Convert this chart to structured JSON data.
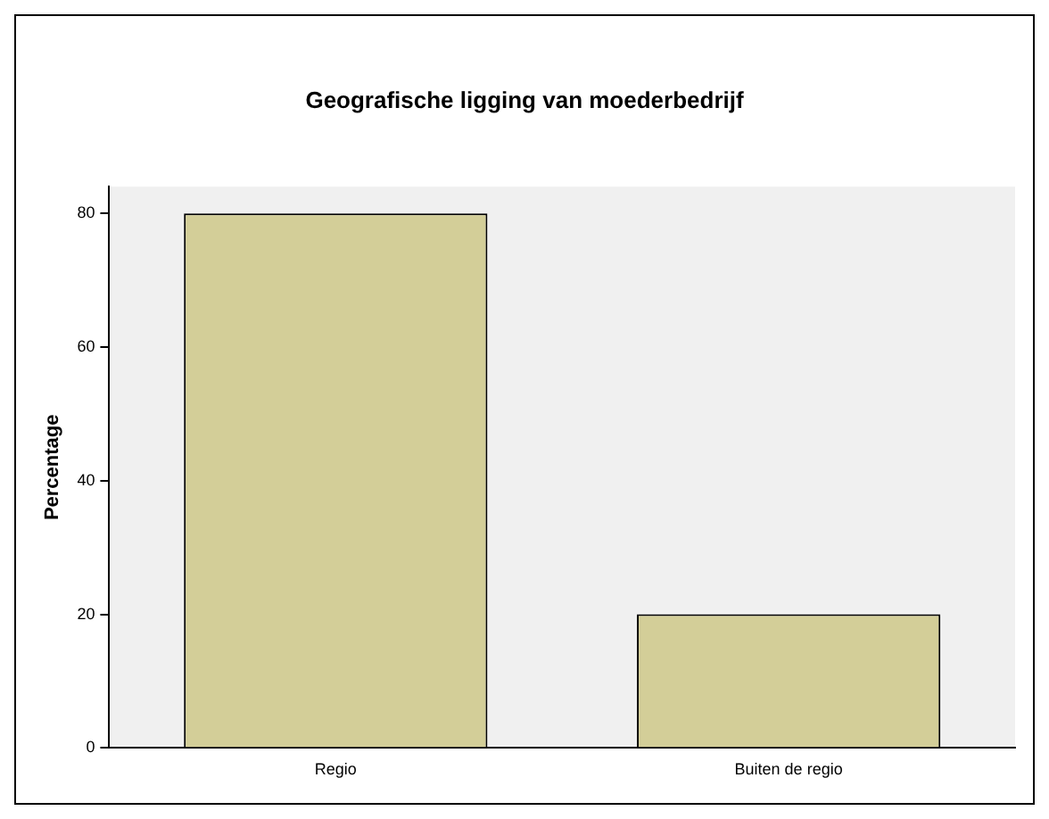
{
  "chart_data": {
    "type": "bar",
    "title": "Geografische ligging van moederbedrijf",
    "ylabel": "Percentage",
    "categories": [
      "Regio",
      "Buiten de regio"
    ],
    "values": [
      80,
      20
    ],
    "color": "#d3ce98",
    "ylim": [
      0,
      84
    ],
    "yticks": [
      0,
      20,
      40,
      60,
      80
    ],
    "grid": false,
    "legend": false
  }
}
